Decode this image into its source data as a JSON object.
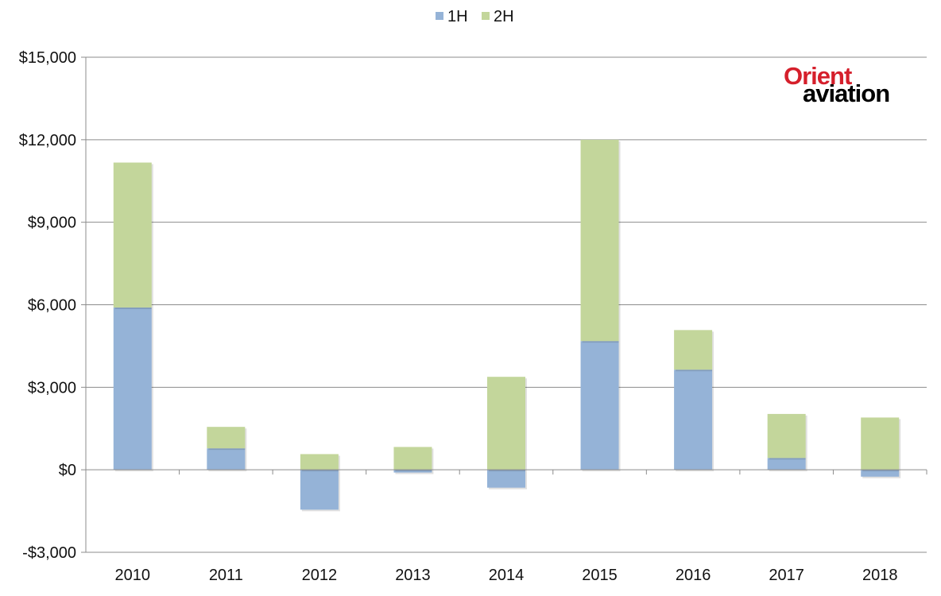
{
  "logo": {
    "line1": "Orient",
    "line2": "aviation"
  },
  "chart_data": {
    "type": "bar",
    "stacked": true,
    "categories": [
      "2010",
      "2011",
      "2012",
      "2013",
      "2014",
      "2015",
      "2016",
      "2017",
      "2018"
    ],
    "series": [
      {
        "name": "1H",
        "color": "#95b3d7",
        "values": [
          5900,
          780,
          -1450,
          -100,
          -650,
          4680,
          3640,
          430,
          -250
        ]
      },
      {
        "name": "2H",
        "color": "#c3d69b",
        "values": [
          5270,
          780,
          570,
          830,
          3380,
          7320,
          1440,
          1600,
          1900
        ]
      }
    ],
    "ylim": [
      -3000,
      15000
    ],
    "yticks": [
      -3000,
      0,
      3000,
      6000,
      9000,
      12000,
      15000
    ],
    "ytick_labels": [
      "-$3,000",
      "$0",
      "$3,000",
      "$6,000",
      "$9,000",
      "$12,000",
      "$15,000"
    ],
    "grid": true,
    "legend_position": "top-center",
    "title": "",
    "xlabel": "",
    "ylabel": ""
  }
}
